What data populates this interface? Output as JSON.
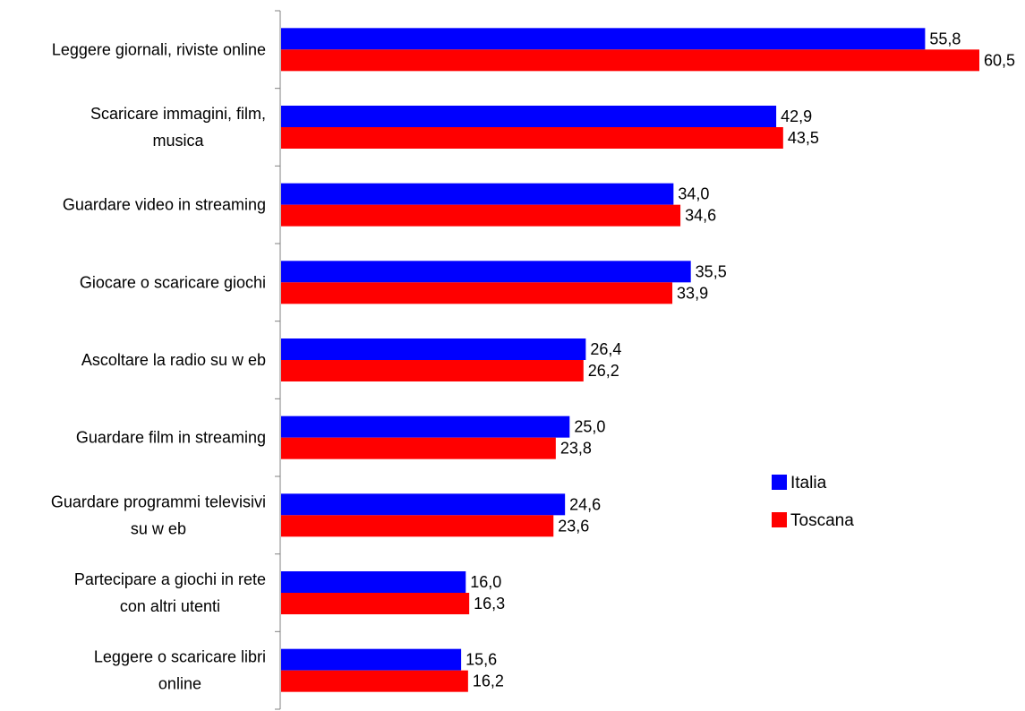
{
  "chart_data": {
    "type": "bar",
    "orientation": "horizontal",
    "categories": [
      [
        "Leggere giornali, riviste online"
      ],
      [
        "Scaricare immagini, film,",
        "musica"
      ],
      [
        "Guardare video in streaming"
      ],
      [
        "Giocare o scaricare giochi"
      ],
      [
        "Ascoltare la radio su w eb"
      ],
      [
        "Guardare film in streaming"
      ],
      [
        "Guardare programmi televisivi",
        "su w eb"
      ],
      [
        "Partecipare a giochi in rete",
        "con altri utenti"
      ],
      [
        "Leggere o scaricare libri",
        "online"
      ]
    ],
    "series": [
      {
        "name": "Italia",
        "color": "#0000FF",
        "values": [
          55.8,
          42.9,
          34.0,
          35.5,
          26.4,
          25.0,
          24.6,
          16.0,
          15.6
        ],
        "labels": [
          "55,8",
          "42,9",
          "34,0",
          "35,5",
          "26,4",
          "25,0",
          "24,6",
          "16,0",
          "15,6"
        ]
      },
      {
        "name": "Toscana",
        "color": "#FF0000",
        "values": [
          60.5,
          43.5,
          34.6,
          33.9,
          26.2,
          23.8,
          23.6,
          16.3,
          16.2
        ],
        "labels": [
          "60,5",
          "43,5",
          "34,6",
          "33,9",
          "26,2",
          "23,8",
          "23,6",
          "16,3",
          "16,2"
        ]
      }
    ],
    "xlim": [
      0,
      60.5
    ],
    "title": "",
    "xlabel": "",
    "ylabel": "",
    "grid": false,
    "legend_position": "right"
  }
}
